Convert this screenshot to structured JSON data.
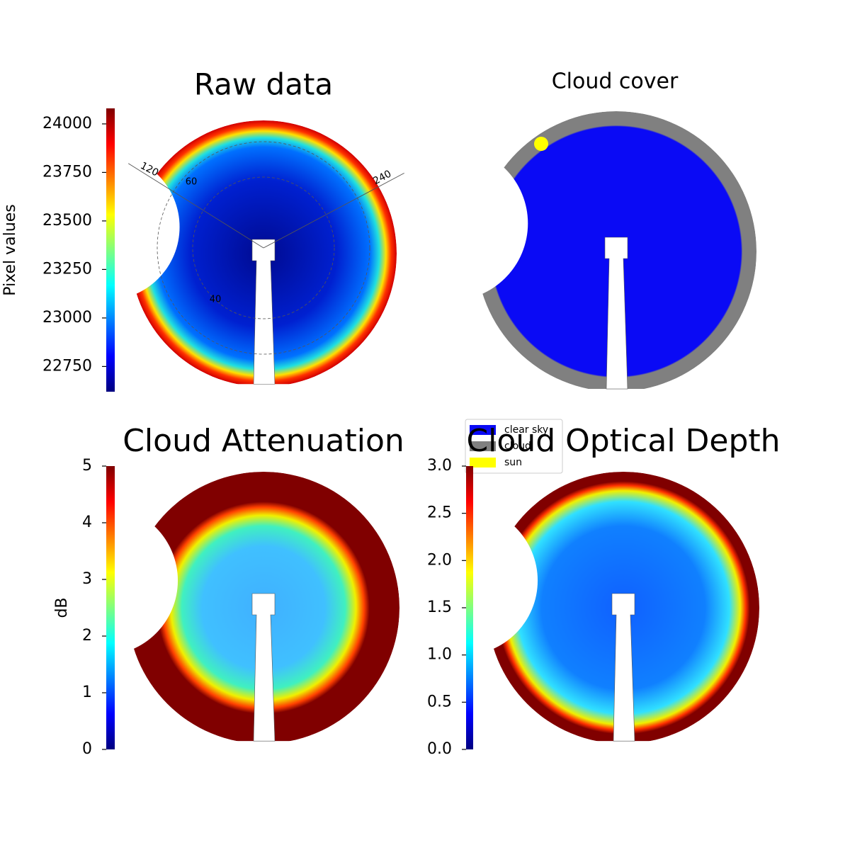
{
  "chart_data": [
    {
      "type": "image",
      "title": "Raw data",
      "colormap": "jet",
      "colorbar_label": "Pixel values",
      "ylim": [
        22620,
        24080
      ],
      "yticks": [
        22750,
        23000,
        23250,
        23500,
        23750,
        24000
      ],
      "azimuth_ticks": [
        120,
        240
      ],
      "zenith_ticks": [
        40,
        60
      ]
    },
    {
      "type": "image",
      "title": "Cloud cover",
      "legend": [
        {
          "name": "clear sky",
          "color": "#0a0af5"
        },
        {
          "name": "cloud",
          "color": "#808080"
        },
        {
          "name": "sun",
          "color": "#ffff00"
        }
      ]
    },
    {
      "type": "image",
      "title": "Cloud Attenuation",
      "colormap": "jet",
      "colorbar_label": "dB",
      "ylim": [
        0,
        5
      ],
      "yticks": [
        0,
        1,
        2,
        3,
        4,
        5
      ]
    },
    {
      "type": "image",
      "title": "Cloud Optical Depth",
      "colormap": "jet",
      "ylim": [
        0,
        3
      ],
      "yticks": [
        {
          "value": 0,
          "label": "0.0"
        },
        0.5,
        {
          "value": 1,
          "label": "1.0"
        },
        1.5,
        {
          "value": 2,
          "label": "2.0"
        },
        2.5,
        {
          "value": 3,
          "label": "3.0"
        }
      ]
    }
  ]
}
